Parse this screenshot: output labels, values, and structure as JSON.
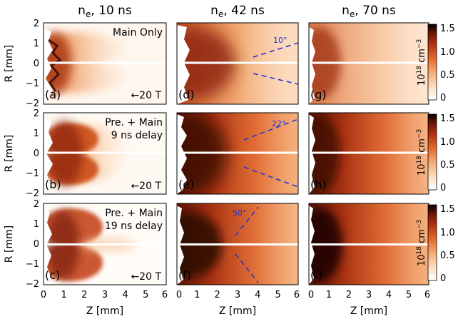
{
  "column_titles": [
    "n_e, 10 ns",
    "n_e, 42 ns",
    "n_e, 70 ns"
  ],
  "column_title_parts": [
    {
      "base": "n",
      "sub": "e",
      "rest": ", 10 ns"
    },
    {
      "base": "n",
      "sub": "e",
      "rest": ", 42 ns"
    },
    {
      "base": "n",
      "sub": "e",
      "rest": ", 70 ns"
    }
  ],
  "y_axis_title": "R [mm]",
  "x_axis_title": "Z [mm]",
  "y_ticks": [
    "2",
    "1",
    "0",
    "−1",
    "−2"
  ],
  "x_ticks": [
    "0",
    "1",
    "2",
    "3",
    "4",
    "5",
    "6"
  ],
  "colorbar": {
    "ticks": [
      "1.5",
      "1.0",
      "0.5",
      "0"
    ],
    "label_base": "10",
    "label_exp": "18",
    "label_unit": " cm",
    "label_unit_exp": "−3"
  },
  "row_annotations": [
    [
      "Main Only"
    ],
    [
      "Pre. + Main",
      "9 ns delay"
    ],
    [
      "Pre. + Main",
      "19 ns delay"
    ]
  ],
  "field_label": "←20 T",
  "panel_letters": [
    "(a)",
    "(d)",
    "(g)",
    "(b)",
    "(e)",
    "(h)",
    "(c)",
    "(f)",
    "(i)"
  ],
  "angle_labels": [
    "10°",
    "22°",
    "50°"
  ],
  "colors": {
    "dashed_line": "#1f2fd0",
    "colormap": [
      "#ffffff",
      "#fde0c5",
      "#f4a36a",
      "#e0601f",
      "#b8300a",
      "#6e1604",
      "#000000"
    ]
  }
}
